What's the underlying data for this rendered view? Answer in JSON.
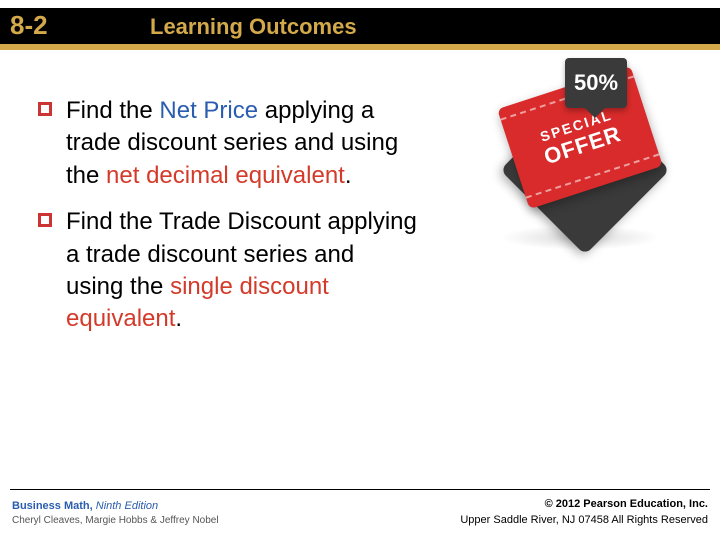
{
  "header": {
    "section": "8-2",
    "title": "Learning Outcomes",
    "bar_color": "#000000",
    "accent_color": "#d4a94a"
  },
  "bullets": [
    {
      "segments": [
        {
          "text": "Find the ",
          "cls": ""
        },
        {
          "text": "Net Price",
          "cls": "blue"
        },
        {
          "text": " applying a trade discount series and using the ",
          "cls": ""
        },
        {
          "text": "net decimal equivalent",
          "cls": "red"
        },
        {
          "text": ".",
          "cls": ""
        }
      ]
    },
    {
      "segments": [
        {
          "text": "Find the Trade Discount applying a trade discount series and using the ",
          "cls": ""
        },
        {
          "text": "single discount equivalent",
          "cls": "red"
        },
        {
          "text": ".",
          "cls": ""
        }
      ]
    }
  ],
  "offer": {
    "percent": "50%",
    "line1": "SPECIAL",
    "line2": "OFFER",
    "tag_color": "#d92b2b",
    "back_color": "#3a3a3a"
  },
  "footer": {
    "book": "Business Math,",
    "edition": "Ninth Edition",
    "authors": "Cheryl Cleaves, Margie Hobbs & Jeffrey Nobel",
    "copyright": "© 2012 Pearson Education, Inc.",
    "address": "Upper Saddle River, NJ 07458  All Rights Reserved"
  },
  "colors": {
    "blue": "#2a5db0",
    "red": "#d43a2a",
    "bullet_border": "#cc3333"
  }
}
